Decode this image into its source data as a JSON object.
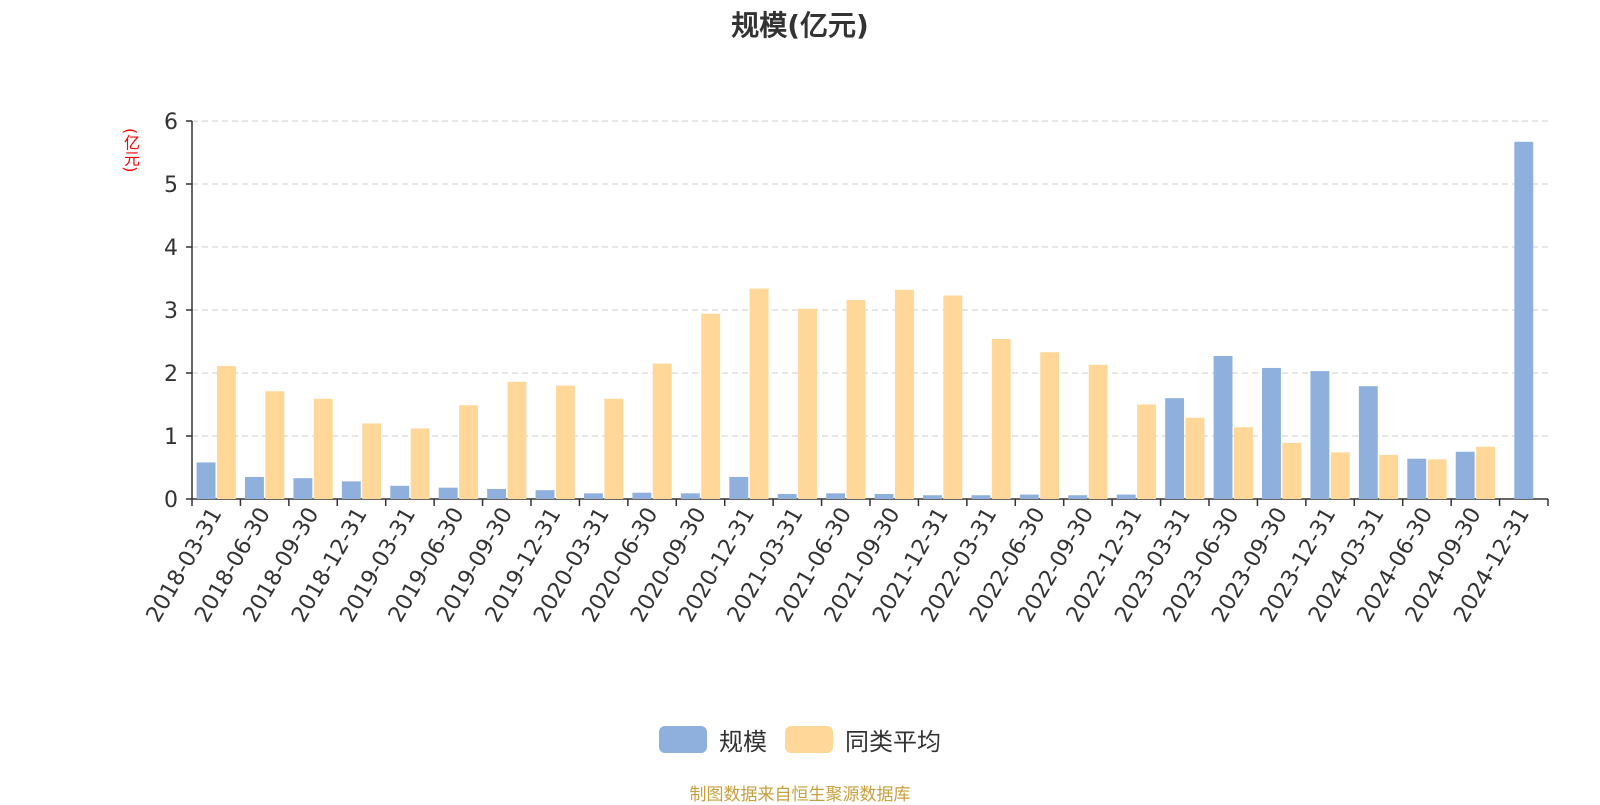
{
  "title": "规模(亿元)",
  "unit_label": "(亿元)",
  "source_note": "制图数据来自恒生聚源数据库",
  "colors": {
    "scale": "#8fafdc",
    "avg": "#ffd899",
    "grid": "#cccccc",
    "axis": "#333333"
  },
  "chart_data": {
    "type": "bar",
    "title": "规模(亿元)",
    "xlabel": "",
    "ylabel": "(亿元)",
    "ylim": [
      0,
      6
    ],
    "yticks": [
      "0",
      "1",
      "2",
      "3",
      "4",
      "5",
      "6"
    ],
    "grid": true,
    "legend_position": "bottom",
    "categories": [
      "2018-03-31",
      "2018-06-30",
      "2018-09-30",
      "2018-12-31",
      "2019-03-31",
      "2019-06-30",
      "2019-09-30",
      "2019-12-31",
      "2020-03-31",
      "2020-06-30",
      "2020-09-30",
      "2020-12-31",
      "2021-03-31",
      "2021-06-30",
      "2021-09-30",
      "2021-12-31",
      "2022-03-31",
      "2022-06-30",
      "2022-09-30",
      "2022-12-31",
      "2023-03-31",
      "2023-06-30",
      "2023-09-30",
      "2023-12-31",
      "2024-03-31",
      "2024-06-30",
      "2024-09-30",
      "2024-12-31"
    ],
    "series": [
      {
        "name": "规模",
        "values": [
          0.58,
          0.35,
          0.33,
          0.28,
          0.21,
          0.18,
          0.16,
          0.14,
          0.09,
          0.1,
          0.09,
          0.35,
          0.08,
          0.09,
          0.08,
          0.06,
          0.06,
          0.07,
          0.06,
          0.07,
          1.6,
          2.27,
          2.08,
          2.03,
          1.79,
          0.64,
          0.75,
          5.67
        ]
      },
      {
        "name": "同类平均",
        "values": [
          2.11,
          1.71,
          1.59,
          1.2,
          1.12,
          1.49,
          1.86,
          1.8,
          1.59,
          2.15,
          2.94,
          3.34,
          3.02,
          3.16,
          3.32,
          3.23,
          2.54,
          2.33,
          2.13,
          1.5,
          1.29,
          1.14,
          0.89,
          0.74,
          0.7,
          0.63,
          0.83,
          null
        ]
      }
    ]
  }
}
